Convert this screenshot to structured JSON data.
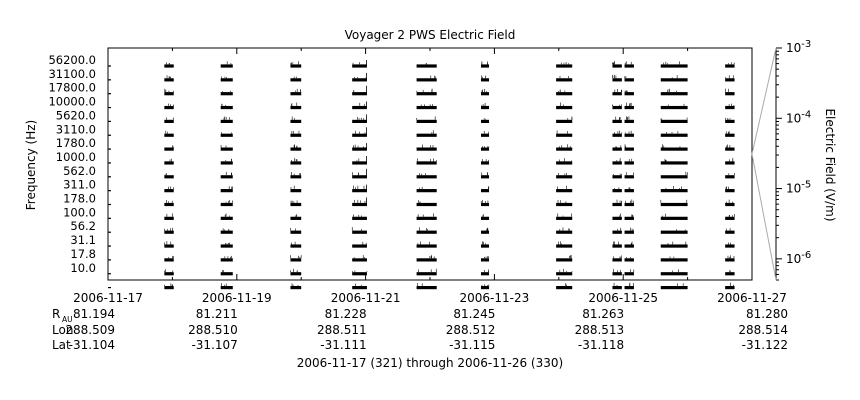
{
  "chart_data": {
    "type": "line",
    "title": "Voyager 2 PWS Electric Field",
    "ylabel": "Frequency (Hz)",
    "y2label": "Electric Field (V/m)",
    "xlabel": "2006-11-17 (321) through 2006-11-26 (330)",
    "channels": [
      "56200.0",
      "31100.0",
      "17800.0",
      "10000.0",
      "5620.0",
      "3110.0",
      "1780.0",
      "1000.0",
      "562.0",
      "311.0",
      "178.0",
      "100.0",
      "56.2",
      "31.1",
      "17.8",
      "10.0"
    ],
    "x_range": [
      "2006-11-17",
      "2006-11-27"
    ],
    "x_ticks": [
      "2006-11-17",
      "2006-11-19",
      "2006-11-21",
      "2006-11-23",
      "2006-11-25",
      "2006-11-27"
    ],
    "right_axis": {
      "scale": "log",
      "range": [
        5e-07,
        0.001
      ],
      "ticks": [
        {
          "value": 0.001,
          "base": "10",
          "exp": "-3"
        },
        {
          "value": 0.0001,
          "base": "10",
          "exp": "-4"
        },
        {
          "value": 1e-05,
          "base": "10",
          "exp": "-5"
        },
        {
          "value": 1e-06,
          "base": "10",
          "exp": "-6"
        }
      ]
    },
    "data_segments": [
      {
        "start": "2006-11-17 21:00",
        "end": "2006-11-18 00:30"
      },
      {
        "start": "2006-11-18 18:00",
        "end": "2006-11-18 22:30"
      },
      {
        "start": "2006-11-19 20:00",
        "end": "2006-11-20 00:00"
      },
      {
        "start": "2006-11-20 19:00",
        "end": "2006-11-21 00:30"
      },
      {
        "start": "2006-11-21 19:00",
        "end": "2006-11-22 02:30"
      },
      {
        "start": "2006-11-22 19:00",
        "end": "2006-11-22 22:00"
      },
      {
        "start": "2006-11-23 23:00",
        "end": "2006-11-24 05:00"
      },
      {
        "start": "2006-11-24 20:00",
        "end": "2006-11-24 23:30"
      },
      {
        "start": "2006-11-25 00:30",
        "end": "2006-11-25 04:00"
      },
      {
        "start": "2006-11-25 14:00",
        "end": "2006-11-26 00:00"
      },
      {
        "start": "2006-11-26 14:00",
        "end": "2006-11-26 17:30"
      }
    ],
    "ephemeris": {
      "rows": [
        {
          "label": "R",
          "sub": "AU",
          "values": [
            "81.194",
            "81.211",
            "81.228",
            "81.245",
            "81.263",
            "81.280"
          ]
        },
        {
          "label": "Lon",
          "sub": "",
          "values": [
            "288.509",
            "288.510",
            "288.511",
            "288.512",
            "288.513",
            "288.514"
          ]
        },
        {
          "label": "Lat",
          "sub": "",
          "values": [
            "-31.104",
            "-31.107",
            "-31.111",
            "-31.115",
            "-31.118",
            "-31.122"
          ]
        }
      ]
    }
  }
}
